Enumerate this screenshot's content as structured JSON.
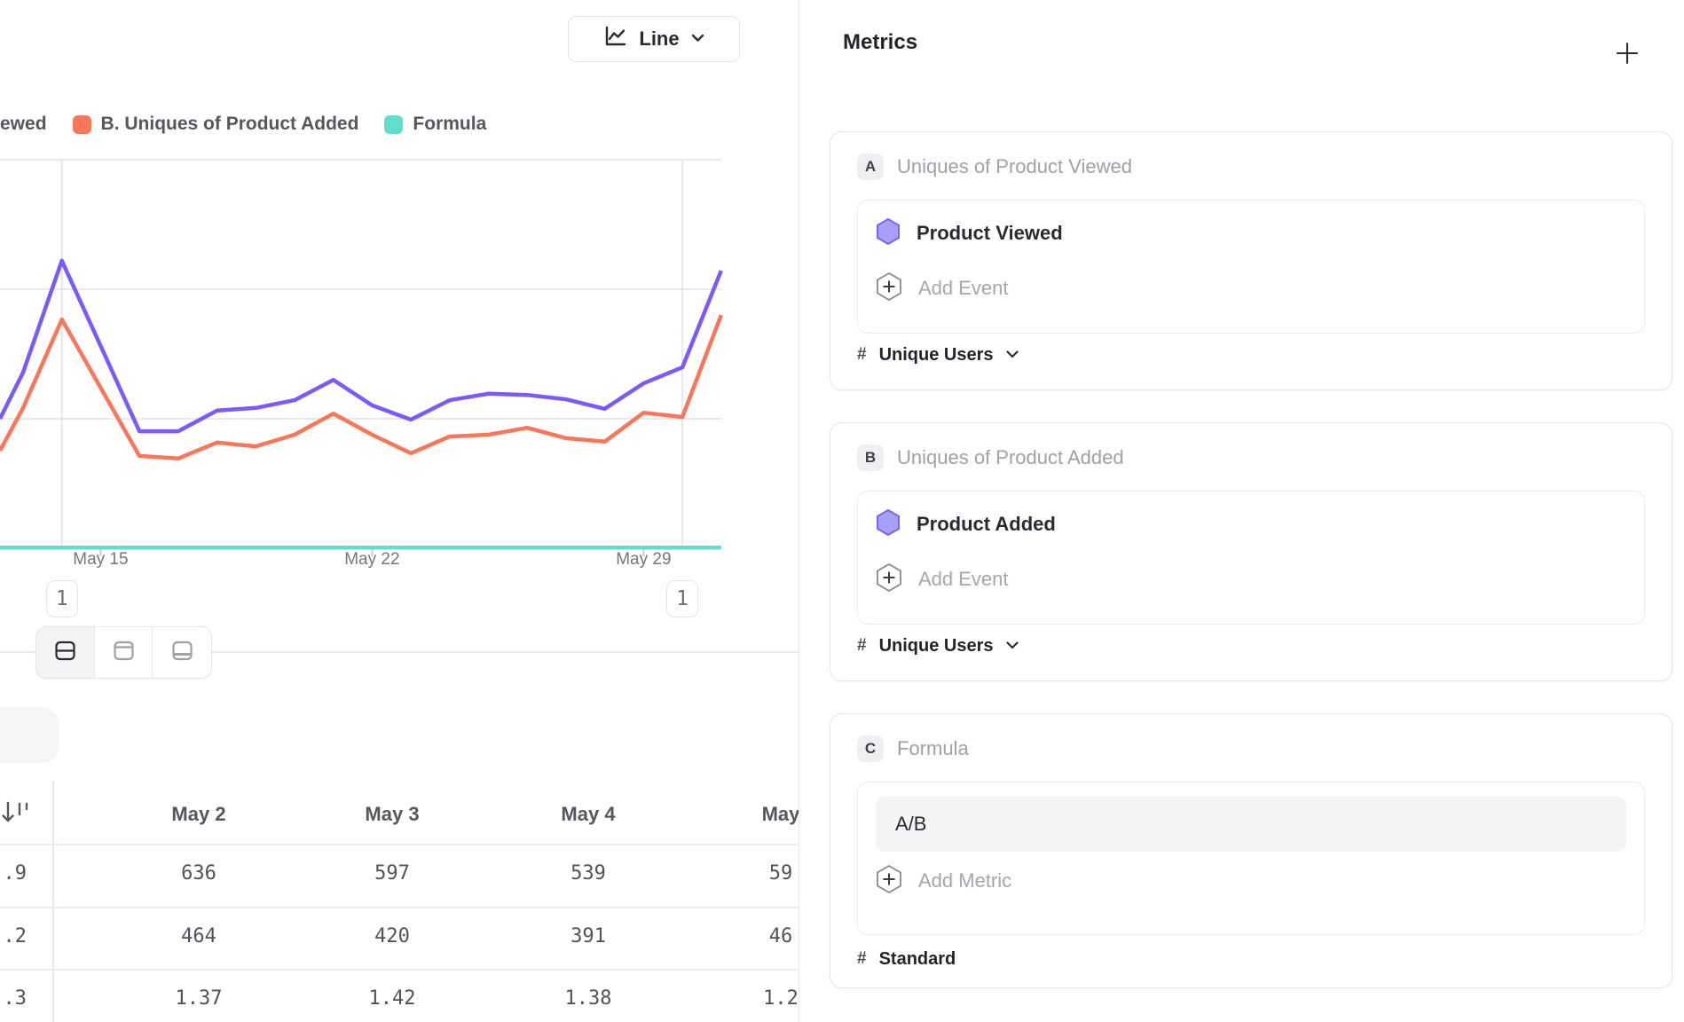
{
  "colors": {
    "series_a": "#7A5AF8",
    "series_b": "#F87659",
    "series_c": "#63DDCE",
    "grid": "#E9EAEC",
    "annotation_line": "#E4E5E9",
    "tick": "#C9CACD",
    "axis_text": "#74767B",
    "hexagon_fill": "#A8A0F8",
    "hexagon_stroke": "#7C63F0"
  },
  "toolbar": {
    "chart_type": "Line"
  },
  "legend": {
    "items": [
      {
        "label": "ewed"
      },
      {
        "label": "B. Uniques of Product Added",
        "swatch": "#F87659"
      },
      {
        "label": "Formula",
        "swatch": "#63DDCE"
      }
    ]
  },
  "chart_data": {
    "type": "line",
    "x": [
      "May 13",
      "May 14",
      "May 15",
      "May 16",
      "May 17",
      "May 18",
      "May 19",
      "May 20",
      "May 21",
      "May 22",
      "May 23",
      "May 24",
      "May 25",
      "May 26",
      "May 27",
      "May 28",
      "May 29",
      "May 30",
      "May 31"
    ],
    "x_ticks": [
      {
        "index": 2,
        "label": "May 15"
      },
      {
        "index": 9,
        "label": "May 22"
      },
      {
        "index": 16,
        "label": "May 29"
      }
    ],
    "ylim": [
      0,
      900
    ],
    "grid": true,
    "legend_position": "top",
    "series": [
      {
        "name": "A. Uniques of Product Viewed",
        "color": "#7A5AF8",
        "left_edge_value": 300,
        "values": [
          407,
          666,
          469,
          271,
          271,
          319,
          325,
          343,
          390,
          331,
          298,
          343,
          358,
          355,
          345,
          323,
          382,
          419,
          643
        ]
      },
      {
        "name": "B. Uniques of Product Added",
        "color": "#F87659",
        "left_edge_value": 226,
        "values": [
          325,
          530,
          372,
          214,
          208,
          245,
          236,
          263,
          312,
          263,
          220,
          259,
          263,
          279,
          255,
          247,
          314,
          304,
          540
        ]
      },
      {
        "name": "Formula",
        "color": "#63DDCE",
        "left_edge_value": 1.4,
        "values": [
          1.4,
          1.4,
          1.4,
          1.4,
          1.4,
          1.4,
          1.4,
          1.4,
          1.4,
          1.4,
          1.4,
          1.4,
          1.4,
          1.4,
          1.4,
          1.4,
          1.4,
          1.4,
          1.4
        ]
      }
    ],
    "annotations": [
      {
        "label": "1",
        "x_index": 1
      },
      {
        "label": "1",
        "x_index": 17
      }
    ]
  },
  "view_toggle": {
    "active": "split-view",
    "options": [
      "split-view",
      "chart-only",
      "table-only"
    ]
  },
  "table": {
    "columns": [
      "May 2",
      "May 3",
      "May 4",
      "May"
    ],
    "row_heads": [
      ".9",
      ".2",
      ".3"
    ],
    "rows": [
      [
        "636",
        "597",
        "539",
        "59"
      ],
      [
        "464",
        "420",
        "391",
        "46"
      ],
      [
        "1.37",
        "1.42",
        "1.38",
        "1.2"
      ]
    ]
  },
  "metrics": {
    "title": "Metrics",
    "cards": [
      {
        "badge": "A",
        "title": "Uniques of Product Viewed",
        "event": "Product Viewed",
        "add_label": "Add Event",
        "measure_symbol": "#",
        "measure": "Unique Users"
      },
      {
        "badge": "B",
        "title": "Uniques of Product Added",
        "event": "Product Added",
        "add_label": "Add Event",
        "measure_symbol": "#",
        "measure": "Unique Users"
      },
      {
        "badge": "C",
        "title": "Formula",
        "formula": "A/B",
        "add_label": "Add Metric",
        "measure_symbol": "#",
        "measure": "Standard"
      }
    ]
  }
}
